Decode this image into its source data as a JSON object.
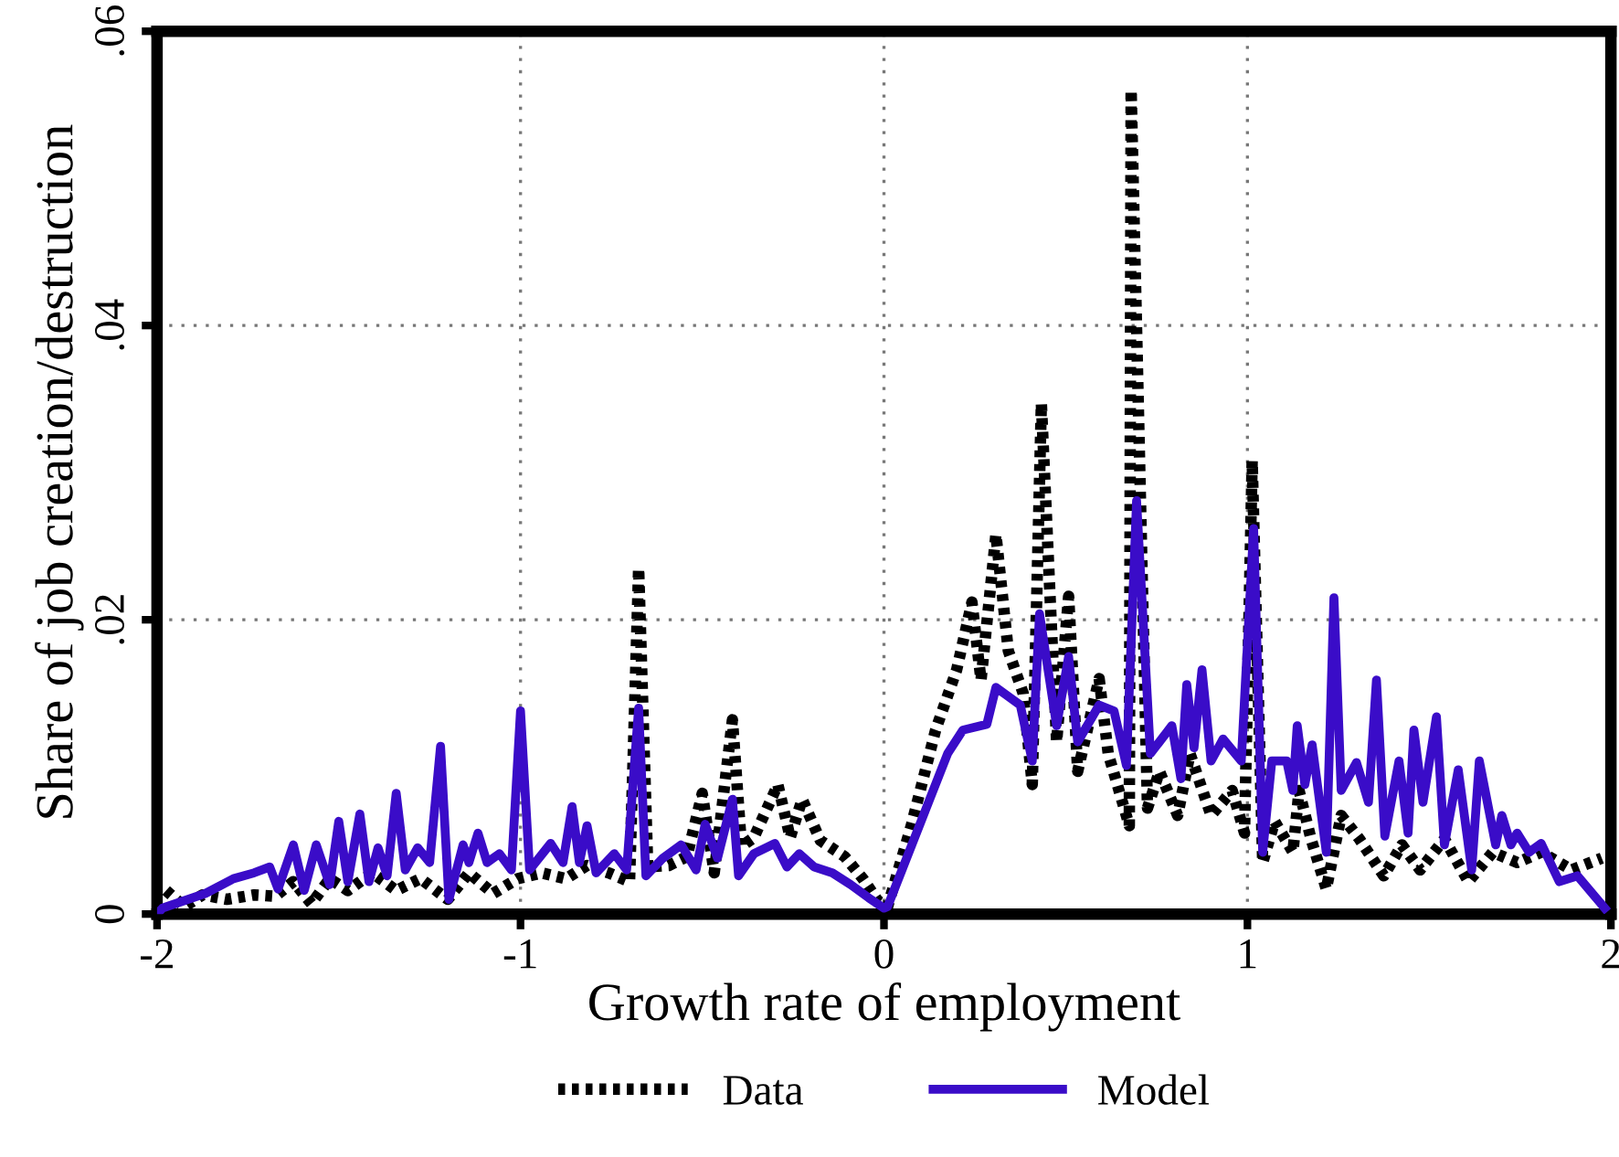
{
  "chart_data": {
    "type": "line",
    "xlabel": "Growth rate of employment",
    "ylabel": "Share of job creation/destruction",
    "xlim": [
      -2,
      2
    ],
    "ylim": [
      0,
      0.06
    ],
    "xticks": [
      -2,
      -1,
      0,
      1,
      2
    ],
    "yticks": [
      {
        "value": 0,
        "label": "0"
      },
      {
        "value": 0.02,
        "label": ".02"
      },
      {
        "value": 0.04,
        "label": ".04"
      },
      {
        "value": 0.06,
        "label": ".06"
      }
    ],
    "grid": true,
    "legend": "bottom",
    "marker": "none",
    "series": [
      {
        "name": "Data",
        "color": "#000000",
        "line_style": "dotted",
        "x": [
          -1.975,
          -1.925,
          -1.875,
          -1.808,
          -1.733,
          -1.675,
          -1.625,
          -1.575,
          -1.525,
          -1.475,
          -1.408,
          -1.342,
          -1.275,
          -1.2,
          -1.142,
          -1.075,
          -1.008,
          -0.942,
          -0.875,
          -0.817,
          -0.758,
          -0.7,
          -0.675,
          -0.65,
          -0.592,
          -0.542,
          -0.5,
          -0.467,
          -0.417,
          -0.392,
          -0.358,
          -0.292,
          -0.258,
          -0.225,
          -0.175,
          -0.108,
          -0.058,
          -0.017,
          0.01,
          0.075,
          0.142,
          0.2,
          0.242,
          0.267,
          0.308,
          0.342,
          0.383,
          0.408,
          0.433,
          0.475,
          0.508,
          0.533,
          0.592,
          0.617,
          0.675,
          0.68,
          0.725,
          0.758,
          0.808,
          0.842,
          0.9,
          0.958,
          0.992,
          1.013,
          1.042,
          1.075,
          1.125,
          1.142,
          1.175,
          1.217,
          1.258,
          1.308,
          1.375,
          1.425,
          1.475,
          1.542,
          1.608,
          1.675,
          1.742,
          1.808,
          1.892,
          1.975
        ],
        "values": [
          0.0016,
          0.0005,
          0.0013,
          0.001,
          0.0013,
          0.0012,
          0.0022,
          0.0007,
          0.0024,
          0.0016,
          0.0028,
          0.0016,
          0.0024,
          0.001,
          0.0028,
          0.0014,
          0.0024,
          0.0028,
          0.0024,
          0.0033,
          0.0028,
          0.0022,
          0.0235,
          0.0032,
          0.0033,
          0.0039,
          0.0082,
          0.0028,
          0.0132,
          0.0046,
          0.0052,
          0.0088,
          0.0052,
          0.0078,
          0.005,
          0.0039,
          0.0024,
          0.0009,
          0.0005,
          0.006,
          0.0125,
          0.0166,
          0.0212,
          0.0159,
          0.0258,
          0.0179,
          0.015,
          0.0088,
          0.0347,
          0.0117,
          0.0216,
          0.0097,
          0.016,
          0.0109,
          0.006,
          0.056,
          0.0072,
          0.0097,
          0.0067,
          0.0109,
          0.0067,
          0.0084,
          0.0055,
          0.0308,
          0.0035,
          0.0063,
          0.0042,
          0.0084,
          0.0051,
          0.0017,
          0.0067,
          0.0051,
          0.0026,
          0.0047,
          0.003,
          0.0051,
          0.0022,
          0.0042,
          0.0035,
          0.0042,
          0.003,
          0.0038
        ]
      },
      {
        "name": "Model",
        "color": "#3a0cc8",
        "line_style": "solid",
        "x": [
          -2,
          -1.985,
          -1.867,
          -1.79,
          -1.733,
          -1.69,
          -1.667,
          -1.625,
          -1.595,
          -1.562,
          -1.525,
          -1.5,
          -1.475,
          -1.442,
          -1.417,
          -1.392,
          -1.367,
          -1.342,
          -1.317,
          -1.283,
          -1.25,
          -1.22,
          -1.197,
          -1.158,
          -1.142,
          -1.117,
          -1.092,
          -1.058,
          -1.025,
          -1.0,
          -0.975,
          -0.917,
          -0.883,
          -0.858,
          -0.838,
          -0.817,
          -0.792,
          -0.742,
          -0.708,
          -0.675,
          -0.655,
          -0.608,
          -0.558,
          -0.517,
          -0.492,
          -0.458,
          -0.417,
          -0.4,
          -0.358,
          -0.3,
          -0.267,
          -0.233,
          -0.192,
          -0.142,
          -0.092,
          -0.042,
          0.0,
          0.01,
          0.175,
          0.217,
          0.283,
          0.308,
          0.375,
          0.408,
          0.428,
          0.475,
          0.508,
          0.533,
          0.592,
          0.633,
          0.667,
          0.695,
          0.733,
          0.792,
          0.817,
          0.833,
          0.853,
          0.875,
          0.9,
          0.933,
          0.983,
          1.017,
          1.042,
          1.067,
          1.108,
          1.125,
          1.137,
          1.158,
          1.178,
          1.217,
          1.238,
          1.258,
          1.3,
          1.333,
          1.355,
          1.378,
          1.417,
          1.442,
          1.458,
          1.483,
          1.52,
          1.542,
          1.58,
          1.617,
          1.638,
          1.683,
          1.7,
          1.725,
          1.742,
          1.775,
          1.808,
          1.858,
          1.908,
          1.983
        ],
        "values": [
          0,
          0.0004,
          0.0014,
          0.0024,
          0.0028,
          0.0032,
          0.0017,
          0.0047,
          0.0016,
          0.0047,
          0.002,
          0.0063,
          0.0022,
          0.0068,
          0.0022,
          0.0045,
          0.0026,
          0.0082,
          0.003,
          0.0045,
          0.0035,
          0.0114,
          0.001,
          0.0047,
          0.0035,
          0.0055,
          0.0035,
          0.0041,
          0.003,
          0.0138,
          0.003,
          0.0048,
          0.0035,
          0.0073,
          0.0035,
          0.006,
          0.0028,
          0.0041,
          0.003,
          0.014,
          0.0026,
          0.0038,
          0.0047,
          0.003,
          0.0061,
          0.0038,
          0.0078,
          0.0026,
          0.0041,
          0.0048,
          0.0032,
          0.0041,
          0.0032,
          0.0028,
          0.002,
          0.0011,
          0.0004,
          0.0005,
          0.0109,
          0.0125,
          0.0129,
          0.0154,
          0.0142,
          0.0104,
          0.0204,
          0.0128,
          0.0175,
          0.0117,
          0.0142,
          0.0138,
          0.0101,
          0.0281,
          0.0109,
          0.0128,
          0.0092,
          0.0156,
          0.0113,
          0.0166,
          0.0104,
          0.0119,
          0.0104,
          0.0262,
          0.0042,
          0.0104,
          0.0104,
          0.0084,
          0.0128,
          0.0088,
          0.0115,
          0.0042,
          0.0215,
          0.0084,
          0.0103,
          0.0076,
          0.0159,
          0.0053,
          0.0104,
          0.0055,
          0.0125,
          0.0076,
          0.0134,
          0.0047,
          0.0098,
          0.003,
          0.0104,
          0.0047,
          0.0067,
          0.0047,
          0.0055,
          0.0042,
          0.0048,
          0.0022,
          0.0026,
          0.0004
        ]
      }
    ]
  }
}
